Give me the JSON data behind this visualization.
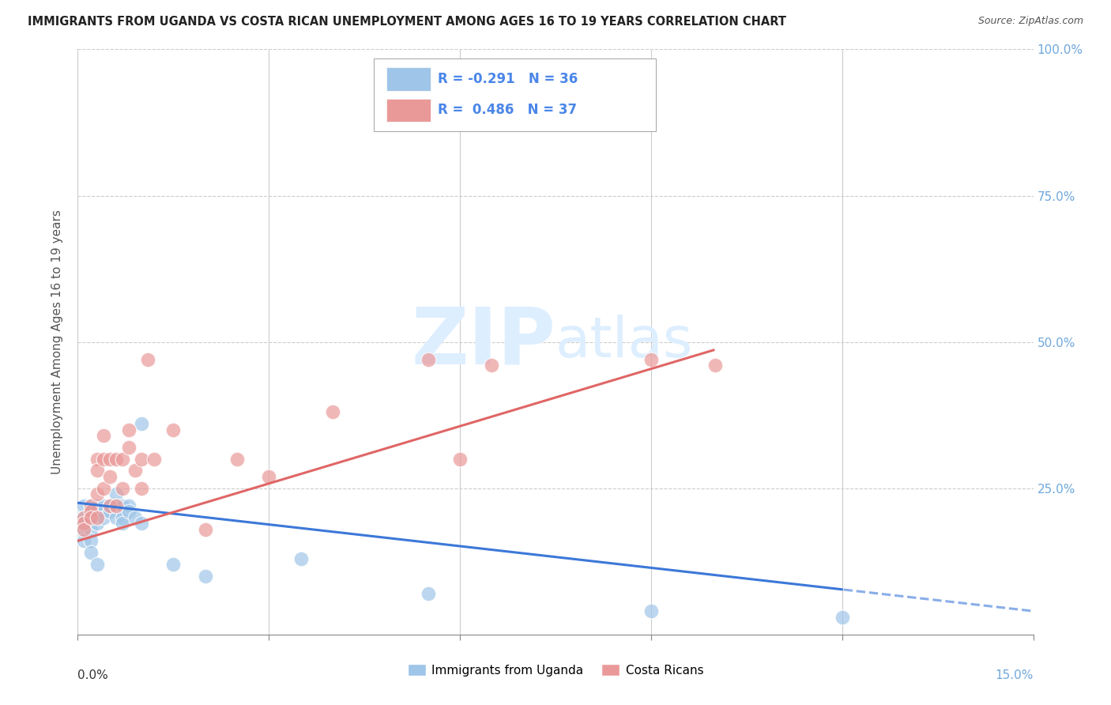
{
  "title": "IMMIGRANTS FROM UGANDA VS COSTA RICAN UNEMPLOYMENT AMONG AGES 16 TO 19 YEARS CORRELATION CHART",
  "source": "Source: ZipAtlas.com",
  "ylabel": "Unemployment Among Ages 16 to 19 years",
  "legend1_label": "Immigrants from Uganda",
  "legend2_label": "Costa Ricans",
  "r1": -0.291,
  "n1": 36,
  "r2": 0.486,
  "n2": 37,
  "blue_color": "#9fc5e8",
  "pink_color": "#ea9999",
  "blue_line_color": "#3c78d8",
  "pink_line_color": "#e06666",
  "text_color": "#4a86e8",
  "right_tick_color": "#6fa8dc",
  "watermark_color": "#ddeeff",
  "blue_x": [
    0.001,
    0.001,
    0.001,
    0.001,
    0.001,
    0.002,
    0.002,
    0.002,
    0.002,
    0.002,
    0.003,
    0.003,
    0.003,
    0.003,
    0.004,
    0.004,
    0.004,
    0.005,
    0.005,
    0.006,
    0.006,
    0.006,
    0.007,
    0.007,
    0.007,
    0.008,
    0.008,
    0.009,
    0.01,
    0.01,
    0.015,
    0.02,
    0.035,
    0.055,
    0.09,
    0.12
  ],
  "blue_y": [
    0.22,
    0.2,
    0.19,
    0.18,
    0.16,
    0.22,
    0.2,
    0.18,
    0.16,
    0.14,
    0.22,
    0.21,
    0.19,
    0.12,
    0.22,
    0.21,
    0.2,
    0.22,
    0.21,
    0.24,
    0.22,
    0.2,
    0.22,
    0.2,
    0.19,
    0.22,
    0.21,
    0.2,
    0.36,
    0.19,
    0.12,
    0.1,
    0.13,
    0.07,
    0.04,
    0.03
  ],
  "pink_x": [
    0.001,
    0.001,
    0.001,
    0.002,
    0.002,
    0.002,
    0.003,
    0.003,
    0.003,
    0.003,
    0.004,
    0.004,
    0.004,
    0.005,
    0.005,
    0.005,
    0.006,
    0.006,
    0.007,
    0.007,
    0.008,
    0.008,
    0.009,
    0.01,
    0.01,
    0.011,
    0.012,
    0.015,
    0.02,
    0.025,
    0.03,
    0.04,
    0.055,
    0.06,
    0.065,
    0.09,
    0.1
  ],
  "pink_y": [
    0.2,
    0.19,
    0.18,
    0.22,
    0.21,
    0.2,
    0.3,
    0.28,
    0.24,
    0.2,
    0.34,
    0.3,
    0.25,
    0.3,
    0.27,
    0.22,
    0.3,
    0.22,
    0.3,
    0.25,
    0.35,
    0.32,
    0.28,
    0.3,
    0.25,
    0.47,
    0.3,
    0.35,
    0.18,
    0.3,
    0.27,
    0.38,
    0.47,
    0.3,
    0.46,
    0.47,
    0.46
  ],
  "xlim": [
    0.0,
    0.15
  ],
  "ylim": [
    0.0,
    1.0
  ],
  "xtick_positions": [
    0.0,
    0.03,
    0.06,
    0.09,
    0.12,
    0.15
  ],
  "ytick_positions": [
    0.0,
    0.25,
    0.5,
    0.75,
    1.0
  ],
  "right_ytick_labels": [
    "25.0%",
    "50.0%",
    "75.0%",
    "100.0%"
  ],
  "right_ytick_positions": [
    0.25,
    0.5,
    0.75,
    1.0
  ]
}
